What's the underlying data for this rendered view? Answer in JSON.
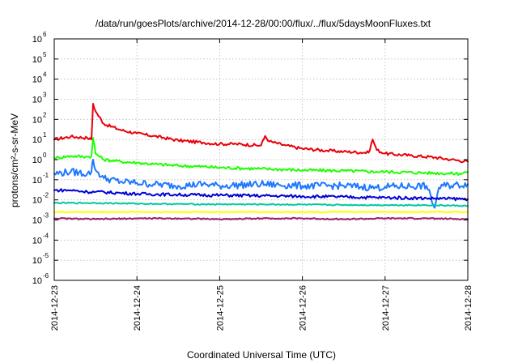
{
  "chart_data": {
    "type": "line",
    "title": "/data/run/goesPlots/archive/2014-12-28/00:00/flux/../flux/5daysMoonFluxes.txt",
    "xlabel": "Coordinated Universal Time (UTC)",
    "ylabel": "protons/cm²-s-sr-MeV",
    "yscale": "log",
    "ylim": [
      1e-06,
      1000000.0
    ],
    "xlim": [
      0,
      5
    ],
    "x_tick_labels": [
      "2014-12-23",
      "2014-12-24",
      "2014-12-25",
      "2014-12-26",
      "2014-12-27",
      "2014-12-28"
    ],
    "x_tick_values": [
      0,
      1,
      2,
      3,
      4,
      5
    ],
    "y_tick_exponents": [
      -6,
      -5,
      -4,
      -3,
      -2,
      -1,
      0,
      1,
      2,
      3,
      4,
      5,
      6
    ],
    "y_tick_base": "10",
    "grid": true,
    "x_unit_note": "x values are days after 2014-12-23 00:00 UTC",
    "series": [
      {
        "color": "#e8000b",
        "x": [
          0.0,
          0.2,
          0.4,
          0.45,
          0.47,
          0.5,
          0.6,
          0.8,
          1.0,
          1.2,
          1.5,
          1.8,
          2.0,
          2.2,
          2.5,
          2.55,
          2.6,
          2.8,
          3.0,
          3.3,
          3.5,
          3.8,
          3.85,
          3.9,
          4.0,
          4.3,
          4.6,
          4.8,
          5.0
        ],
        "y": [
          10,
          14,
          12,
          10,
          600,
          250,
          60,
          30,
          20,
          15,
          9,
          7,
          6,
          6,
          5,
          15,
          8,
          5,
          3.5,
          2.8,
          2.5,
          2.2,
          10,
          3,
          2,
          1.6,
          1.3,
          1.0,
          0.8
        ]
      },
      {
        "color": "#1eff00",
        "x": [
          0.0,
          0.2,
          0.4,
          0.45,
          0.47,
          0.5,
          0.6,
          0.8,
          1.0,
          1.2,
          1.5,
          1.8,
          2.0,
          2.5,
          3.0,
          3.5,
          3.9,
          4.0,
          4.5,
          4.9,
          5.0
        ],
        "y": [
          1.2,
          1.5,
          1.4,
          1.5,
          12,
          2,
          1.0,
          0.8,
          0.7,
          0.6,
          0.5,
          0.45,
          0.4,
          0.35,
          0.3,
          0.28,
          0.25,
          0.25,
          0.22,
          0.2,
          0.25
        ]
      },
      {
        "color": "#1e78ff",
        "x": [
          0.0,
          0.2,
          0.4,
          0.45,
          0.47,
          0.5,
          0.6,
          0.8,
          1.0,
          1.2,
          1.5,
          1.8,
          2.0,
          2.5,
          3.0,
          3.5,
          3.9,
          4.0,
          4.5,
          4.6,
          4.65,
          4.7,
          5.0
        ],
        "y": [
          0.2,
          0.25,
          0.2,
          0.25,
          1.0,
          0.3,
          0.12,
          0.08,
          0.07,
          0.06,
          0.05,
          0.06,
          0.05,
          0.06,
          0.05,
          0.05,
          0.04,
          0.045,
          0.05,
          0.004,
          0.04,
          0.05,
          0.06
        ]
      },
      {
        "color": "#0000d8",
        "x": [
          0.0,
          0.2,
          0.4,
          0.5,
          0.8,
          1.0,
          1.5,
          2.0,
          2.5,
          3.0,
          3.5,
          3.9,
          4.0,
          4.5,
          5.0
        ],
        "y": [
          0.03,
          0.03,
          0.025,
          0.025,
          0.022,
          0.02,
          0.018,
          0.017,
          0.016,
          0.015,
          0.014,
          0.013,
          0.013,
          0.012,
          0.011
        ]
      },
      {
        "color": "#00c8a0",
        "x": [
          0.0,
          0.5,
          1.0,
          1.5,
          2.0,
          2.5,
          3.0,
          3.5,
          4.0,
          4.5,
          5.0
        ],
        "y": [
          0.007,
          0.007,
          0.0065,
          0.0062,
          0.006,
          0.006,
          0.0058,
          0.0056,
          0.0055,
          0.0055,
          0.005
        ]
      },
      {
        "color": "#ffff00",
        "x": [
          0.0,
          1.0,
          2.0,
          3.0,
          4.0,
          5.0
        ],
        "y": [
          0.0025,
          0.0025,
          0.0025,
          0.0025,
          0.0025,
          0.0025
        ]
      },
      {
        "color": "#9b1e6e",
        "x": [
          0.0,
          0.5,
          1.0,
          1.5,
          2.0,
          2.5,
          3.0,
          3.5,
          4.0,
          4.5,
          5.0
        ],
        "y": [
          0.0012,
          0.0011,
          0.0012,
          0.0012,
          0.0011,
          0.0012,
          0.0012,
          0.0011,
          0.0012,
          0.0012,
          0.0011
        ]
      }
    ]
  }
}
